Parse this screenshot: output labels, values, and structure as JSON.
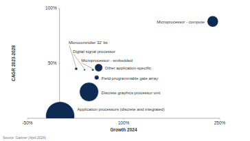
{
  "chart_data": {
    "type": "bubble",
    "x_label": "Growth 2024",
    "y_label": "CAGR 2023-2028",
    "source": "Source: Gartner (April 2024)",
    "labels": [
      "Microprocessor - compute",
      "Microcontroller 32' bit",
      "Digital signal processor",
      "Microprocessor - embedded",
      "Other application-specific",
      "Field-programmable gate array",
      "Discrete graphics processor unit",
      "Application processors (discrete and integrated)"
    ],
    "x": [
      239,
      26,
      39,
      52,
      61,
      58,
      46,
      1
    ],
    "values": [
      88,
      45,
      44,
      44,
      46,
      37,
      24,
      2
    ],
    "size": [
      12,
      0.8,
      0.3,
      0.5,
      6,
      2,
      35,
      80
    ],
    "color": "#0d2b52",
    "grid": false,
    "xlim": [
      -50,
      250
    ],
    "ylim": [
      0,
      100
    ],
    "xticks": [
      {
        "value": -50,
        "label": "-50%"
      },
      {
        "value": 100,
        "label": "100%"
      },
      {
        "value": 250,
        "label": "250%"
      }
    ],
    "yticks": [
      {
        "value": 50,
        "label": "50%"
      },
      {
        "value": 100,
        "label": "100%"
      }
    ]
  }
}
